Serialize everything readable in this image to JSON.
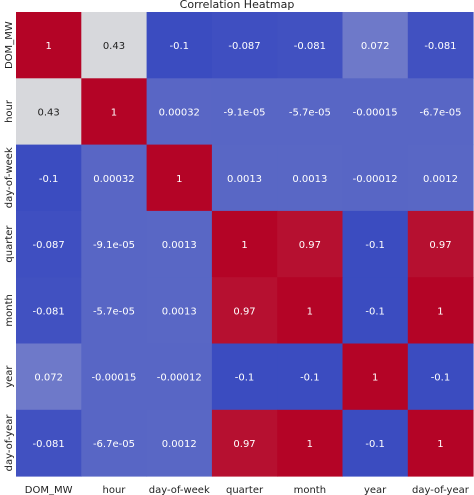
{
  "chart_data": {
    "type": "heatmap",
    "title": "Correlation Heatmap",
    "xlabel": "",
    "ylabel": "",
    "x_categories": [
      "DOM_MW",
      "hour",
      "day-of-week",
      "quarter",
      "month",
      "year",
      "day-of-year"
    ],
    "y_categories": [
      "DOM_MW",
      "hour",
      "day-of-week",
      "quarter",
      "month",
      "year",
      "day-of-year"
    ],
    "cell_labels": [
      [
        "1",
        "0.43",
        "-0.1",
        "-0.087",
        "-0.081",
        "0.072",
        "-0.081"
      ],
      [
        "0.43",
        "1",
        "0.00032",
        "-9.1e-05",
        "-5.7e-05",
        "-0.00015",
        "-6.7e-05"
      ],
      [
        "-0.1",
        "0.00032",
        "1",
        "0.0013",
        "0.0013",
        "-0.00012",
        "0.0012"
      ],
      [
        "-0.087",
        "-9.1e-05",
        "0.0013",
        "1",
        "0.97",
        "-0.1",
        "0.97"
      ],
      [
        "-0.081",
        "-5.7e-05",
        "0.0013",
        "0.97",
        "1",
        "-0.1",
        "1"
      ],
      [
        "0.072",
        "-0.00015",
        "-0.00012",
        "-0.1",
        "-0.1",
        "1",
        "-0.1"
      ],
      [
        "-0.081",
        "-6.7e-05",
        "0.0012",
        "0.97",
        "1",
        "-0.1",
        "1"
      ]
    ],
    "values": [
      [
        1,
        0.43,
        -0.1,
        -0.087,
        -0.081,
        0.072,
        -0.081
      ],
      [
        0.43,
        1,
        0.00032,
        -9.1e-05,
        -5.7e-05,
        -0.00015,
        -6.7e-05
      ],
      [
        -0.1,
        0.00032,
        1,
        0.0013,
        0.0013,
        -0.00012,
        0.0012
      ],
      [
        -0.087,
        -9.1e-05,
        0.0013,
        1,
        0.97,
        -0.1,
        0.97
      ],
      [
        -0.081,
        -5.7e-05,
        0.0013,
        0.97,
        1,
        -0.1,
        1
      ],
      [
        0.072,
        -0.00015,
        -0.00012,
        -0.1,
        -0.1,
        1,
        -0.1
      ],
      [
        -0.081,
        -6.7e-05,
        0.0012,
        0.97,
        1,
        -0.1,
        1
      ]
    ],
    "colormap": "coolwarm",
    "value_range": [
      -0.1,
      1
    ],
    "colors": {
      "min": "#3b4cc0",
      "mid": "#dddddd",
      "max": "#b40426",
      "text": "#ffffff",
      "axis_text": "#222222"
    }
  }
}
